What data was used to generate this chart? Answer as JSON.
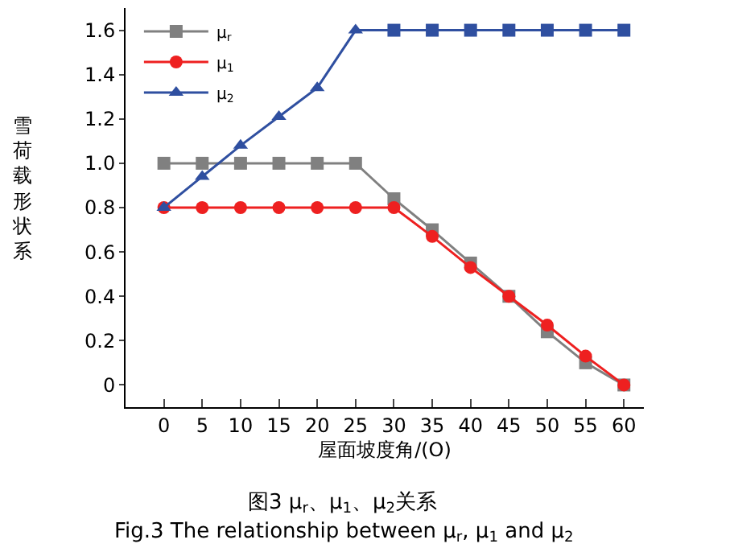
{
  "chart_data": {
    "type": "line",
    "xlabel": "屋面坡度角/(O)",
    "ylabel": "雪荷载形状系",
    "x": [
      0,
      5,
      10,
      15,
      20,
      25,
      30,
      35,
      40,
      45,
      50,
      55,
      60
    ],
    "series": [
      {
        "name": "μ$_{r}$",
        "color": "#808080",
        "marker": "square",
        "values": [
          1.0,
          1.0,
          1.0,
          1.0,
          1.0,
          1.0,
          0.84,
          0.7,
          0.55,
          0.4,
          0.24,
          0.1,
          0
        ]
      },
      {
        "name": "μ$_{1}$",
        "color": "#ee2020",
        "marker": "circle",
        "values": [
          0.8,
          0.8,
          0.8,
          0.8,
          0.8,
          0.8,
          0.8,
          0.67,
          0.53,
          0.4,
          0.27,
          0.13,
          0
        ]
      },
      {
        "name": "μ$_{2}$",
        "color": "#2f4fa0",
        "marker": [
          "triangle",
          "triangle",
          "triangle",
          "triangle",
          "triangle",
          "triangle",
          "square",
          "square",
          "square",
          "square",
          "square",
          "square",
          "square"
        ],
        "values": [
          0.8,
          0.94,
          1.08,
          1.21,
          1.34,
          1.6,
          1.6,
          1.6,
          1.6,
          1.6,
          1.6,
          1.6,
          1.6
        ]
      }
    ],
    "xlim": [
      -5,
      62.6
    ],
    "xticks": [
      0,
      5,
      10,
      15,
      20,
      25,
      30,
      35,
      40,
      45,
      50,
      55,
      60
    ],
    "ylim": [
      -0.1,
      1.7
    ],
    "yticks": [
      0,
      {
        "value": 0.2,
        "label": "0.2"
      },
      {
        "value": 0.4,
        "label": "0.4"
      },
      {
        "value": 0.6,
        "label": "0.6"
      },
      {
        "value": 0.8,
        "label": "0.8"
      },
      {
        "value": 1.0,
        "label": "1.0"
      },
      {
        "value": 1.2,
        "label": "1.2"
      },
      {
        "value": 1.4,
        "label": "1.4"
      },
      {
        "value": 1.6,
        "label": "1.6"
      }
    ],
    "grid": false,
    "legend": "top left",
    "annotations": [
      "图3 μ$_{r}$、μ$_{1}$、μ$_{2}$关系",
      "Fig.3 The relationship between μ$_{r}$, μ$_{1}$ and μ$_{2}$"
    ]
  }
}
